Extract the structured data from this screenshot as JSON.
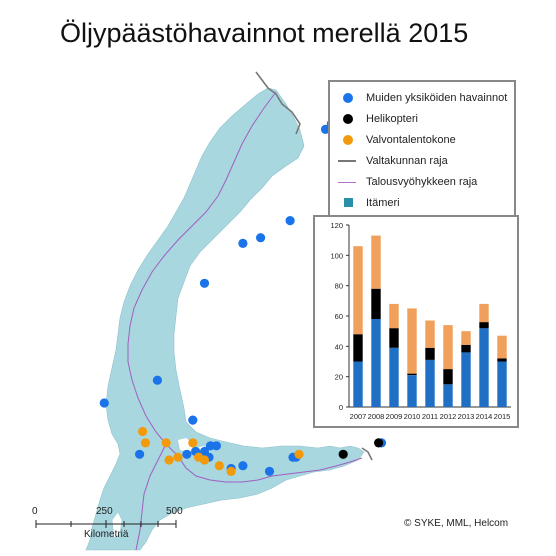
{
  "title": "Öljypäästöhavainnot merellä 2015",
  "legend": {
    "items": [
      {
        "label": "Muiden yksiköiden havainnot",
        "symbol": "dot",
        "color": "#1a73e8"
      },
      {
        "label": "Helikopteri",
        "symbol": "dot",
        "color": "#000000"
      },
      {
        "label": "Valvontalentokone",
        "symbol": "dot",
        "color": "#f29a0c"
      },
      {
        "label": "Valtakunnan raja",
        "symbol": "line",
        "color": "#777777"
      },
      {
        "label": "Talousvyöhykkeen raja",
        "symbol": "line",
        "color": "#b070c8"
      },
      {
        "label": "Itämeri",
        "symbol": "square",
        "color": "#2a8fa8"
      }
    ]
  },
  "scale": {
    "ticks": [
      "0",
      "250",
      "500"
    ],
    "unit": "Kilometriä"
  },
  "credit": "© SYKE, MML, Helcom",
  "colors": {
    "sea": "#a8d7e0",
    "land": "#ffffff",
    "border": "#777777",
    "eez": "#a05fc0"
  },
  "chart_data": {
    "type": "bar",
    "stacked": true,
    "categories": [
      "2007",
      "2008",
      "2009",
      "2010",
      "2011",
      "2012",
      "2013",
      "2014",
      "2015"
    ],
    "series": [
      {
        "name": "Muiden yksiköiden havainnot",
        "color": "#1f6fc4",
        "values": [
          30,
          58,
          39,
          21,
          31,
          15,
          36,
          52,
          30
        ]
      },
      {
        "name": "Helikopteri",
        "color": "#000000",
        "values": [
          18,
          20,
          13,
          1,
          8,
          10,
          5,
          4,
          2
        ]
      },
      {
        "name": "Valvontalentokone",
        "color": "#f0a05a",
        "values": [
          58,
          35,
          16,
          43,
          18,
          29,
          9,
          12,
          15
        ]
      }
    ],
    "yticks": [
      0,
      20,
      40,
      60,
      80,
      100,
      120
    ],
    "ylim": [
      0,
      120
    ],
    "grid": false
  },
  "observations": [
    {
      "type": "other",
      "lon": 24.2,
      "lat": 65.9
    },
    {
      "type": "other",
      "lon": 24.0,
      "lat": 65.8
    },
    {
      "type": "other",
      "lon": 25.4,
      "lat": 65.1
    },
    {
      "type": "other",
      "lon": 22.8,
      "lat": 64.2
    },
    {
      "type": "other",
      "lon": 21.8,
      "lat": 63.9
    },
    {
      "type": "other",
      "lon": 21.2,
      "lat": 63.8
    },
    {
      "type": "other",
      "lon": 19.9,
      "lat": 63.1
    },
    {
      "type": "other",
      "lon": 18.3,
      "lat": 61.4
    },
    {
      "type": "other",
      "lon": 16.5,
      "lat": 61.0
    },
    {
      "type": "other",
      "lon": 19.5,
      "lat": 60.7
    },
    {
      "type": "other",
      "lon": 17.7,
      "lat": 60.1
    },
    {
      "type": "other",
      "lon": 19.3,
      "lat": 60.1
    },
    {
      "type": "other",
      "lon": 19.6,
      "lat": 60.15
    },
    {
      "type": "other",
      "lon": 19.9,
      "lat": 60.15
    },
    {
      "type": "other",
      "lon": 20.1,
      "lat": 60.25
    },
    {
      "type": "other",
      "lon": 20.3,
      "lat": 60.25
    },
    {
      "type": "other",
      "lon": 20.05,
      "lat": 60.05
    },
    {
      "type": "other",
      "lon": 20.8,
      "lat": 59.85
    },
    {
      "type": "other",
      "lon": 21.2,
      "lat": 59.9
    },
    {
      "type": "other",
      "lon": 22.9,
      "lat": 60.05
    },
    {
      "type": "other",
      "lon": 23.0,
      "lat": 60.05
    },
    {
      "type": "other",
      "lon": 22.1,
      "lat": 59.8
    },
    {
      "type": "other",
      "lon": 25.9,
      "lat": 60.3
    },
    {
      "type": "helicopter",
      "lon": 24.6,
      "lat": 60.1
    },
    {
      "type": "helicopter",
      "lon": 25.8,
      "lat": 60.3
    },
    {
      "type": "aircraft",
      "lon": 17.8,
      "lat": 60.5
    },
    {
      "type": "aircraft",
      "lon": 17.9,
      "lat": 60.3
    },
    {
      "type": "aircraft",
      "lon": 18.6,
      "lat": 60.3
    },
    {
      "type": "aircraft",
      "lon": 18.7,
      "lat": 60.0
    },
    {
      "type": "aircraft",
      "lon": 19.0,
      "lat": 60.05
    },
    {
      "type": "aircraft",
      "lon": 19.5,
      "lat": 60.3
    },
    {
      "type": "aircraft",
      "lon": 19.7,
      "lat": 60.05
    },
    {
      "type": "aircraft",
      "lon": 19.9,
      "lat": 60.0
    },
    {
      "type": "aircraft",
      "lon": 20.4,
      "lat": 59.9
    },
    {
      "type": "aircraft",
      "lon": 20.8,
      "lat": 59.8
    },
    {
      "type": "aircraft",
      "lon": 23.1,
      "lat": 60.1
    }
  ]
}
